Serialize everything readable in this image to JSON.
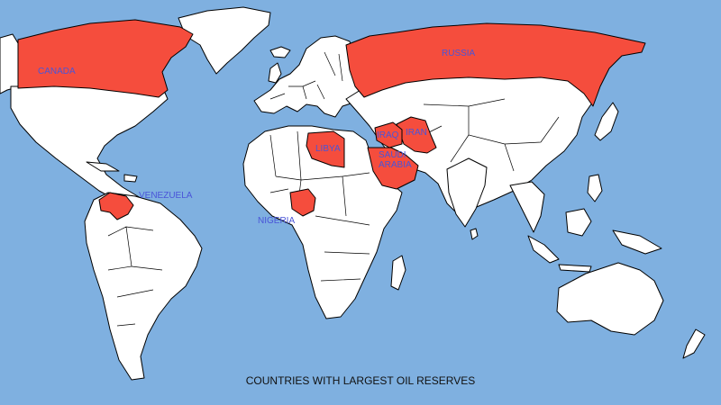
{
  "map": {
    "title": "COUNTRIES WITH LARGEST OIL RESERVES",
    "colors": {
      "ocean": "#7fb0e0",
      "land": "#ffffff",
      "highlight": "#f54d3d",
      "label": "#4a55d8"
    },
    "countries": [
      {
        "id": "canada",
        "label": "CANADA"
      },
      {
        "id": "russia",
        "label": "RUSSIA"
      },
      {
        "id": "iran",
        "label": "IRAN"
      },
      {
        "id": "iraq",
        "label": "IRAQ"
      },
      {
        "id": "saudi-arabia",
        "label": "SAUDI ARABIA"
      },
      {
        "id": "libya",
        "label": "LIBYA"
      },
      {
        "id": "venezuela",
        "label": "VENEZUELA"
      },
      {
        "id": "nigeria",
        "label": "NIGERIA"
      }
    ]
  }
}
